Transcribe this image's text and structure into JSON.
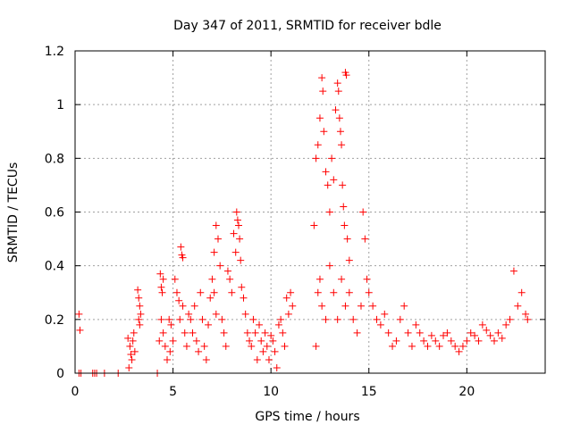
{
  "chart_data": {
    "type": "scatter",
    "title": "Day 347 of 2011, SRMTID for receiver bdle",
    "xlabel": "GPS time / hours",
    "ylabel": "SRMTID / TECUs",
    "xlim": [
      0,
      24
    ],
    "ylim": [
      0,
      1.2
    ],
    "xticks": [
      "0",
      "5",
      "10",
      "15",
      "20"
    ],
    "xtick_values": [
      0,
      5,
      10,
      15,
      20
    ],
    "yticks": [
      "0",
      "0.2",
      "0.4",
      "0.6",
      "0.8",
      "1",
      "1.2"
    ],
    "ytick_values": [
      0,
      0.2,
      0.4,
      0.6,
      0.8,
      1.0,
      1.2
    ],
    "grid": true,
    "marker": "plus",
    "color": "#ff0000",
    "series": [
      {
        "values": [
          [
            0.2,
            0.22
          ],
          [
            0.25,
            0.16
          ],
          [
            0.2,
            0
          ],
          [
            0.3,
            0
          ],
          [
            0.9,
            0
          ],
          [
            1.0,
            0
          ],
          [
            1.1,
            0
          ],
          [
            1.5,
            0
          ],
          [
            2.2,
            0
          ],
          [
            2.7,
            0.13
          ],
          [
            2.8,
            0.1
          ],
          [
            2.85,
            0.07
          ],
          [
            2.9,
            0.05
          ],
          [
            2.95,
            0.12
          ],
          [
            3.0,
            0.15
          ],
          [
            2.75,
            0.02
          ],
          [
            3.05,
            0.08
          ],
          [
            3.2,
            0.31
          ],
          [
            3.25,
            0.28
          ],
          [
            3.3,
            0.25
          ],
          [
            3.25,
            0.2
          ],
          [
            3.35,
            0.22
          ],
          [
            3.3,
            0.18
          ],
          [
            4.2,
            0
          ],
          [
            4.35,
            0.37
          ],
          [
            4.4,
            0.32
          ],
          [
            4.45,
            0.3
          ],
          [
            4.5,
            0.35
          ],
          [
            4.4,
            0.2
          ],
          [
            4.5,
            0.15
          ],
          [
            4.6,
            0.1
          ],
          [
            4.3,
            0.12
          ],
          [
            4.7,
            0.05
          ],
          [
            4.8,
            0.2
          ],
          [
            4.9,
            0.18
          ],
          [
            5.0,
            0.12
          ],
          [
            4.85,
            0.08
          ],
          [
            5.1,
            0.35
          ],
          [
            5.2,
            0.3
          ],
          [
            5.3,
            0.27
          ],
          [
            5.4,
            0.47
          ],
          [
            5.45,
            0.44
          ],
          [
            5.5,
            0.43
          ],
          [
            5.35,
            0.2
          ],
          [
            5.5,
            0.25
          ],
          [
            5.6,
            0.15
          ],
          [
            5.7,
            0.1
          ],
          [
            5.8,
            0.22
          ],
          [
            5.9,
            0.2
          ],
          [
            6.0,
            0.15
          ],
          [
            6.1,
            0.25
          ],
          [
            6.2,
            0.12
          ],
          [
            6.3,
            0.08
          ],
          [
            6.4,
            0.3
          ],
          [
            6.5,
            0.2
          ],
          [
            6.6,
            0.1
          ],
          [
            6.7,
            0.05
          ],
          [
            6.8,
            0.18
          ],
          [
            6.9,
            0.28
          ],
          [
            7.0,
            0.35
          ],
          [
            7.1,
            0.3
          ],
          [
            7.2,
            0.22
          ],
          [
            7.1,
            0.45
          ],
          [
            7.2,
            0.55
          ],
          [
            7.3,
            0.5
          ],
          [
            7.4,
            0.4
          ],
          [
            7.5,
            0.2
          ],
          [
            7.6,
            0.15
          ],
          [
            7.7,
            0.1
          ],
          [
            7.8,
            0.38
          ],
          [
            7.9,
            0.35
          ],
          [
            8.0,
            0.3
          ],
          [
            8.1,
            0.52
          ],
          [
            8.2,
            0.45
          ],
          [
            8.25,
            0.6
          ],
          [
            8.3,
            0.57
          ],
          [
            8.35,
            0.55
          ],
          [
            8.4,
            0.5
          ],
          [
            8.45,
            0.42
          ],
          [
            8.5,
            0.32
          ],
          [
            8.6,
            0.28
          ],
          [
            8.7,
            0.22
          ],
          [
            8.8,
            0.15
          ],
          [
            8.9,
            0.12
          ],
          [
            9.0,
            0.1
          ],
          [
            9.1,
            0.2
          ],
          [
            9.2,
            0.15
          ],
          [
            9.3,
            0.05
          ],
          [
            9.4,
            0.18
          ],
          [
            9.5,
            0.12
          ],
          [
            9.6,
            0.08
          ],
          [
            9.7,
            0.15
          ],
          [
            9.8,
            0.1
          ],
          [
            9.9,
            0.05
          ],
          [
            10.0,
            0.14
          ],
          [
            10.1,
            0.12
          ],
          [
            10.2,
            0.08
          ],
          [
            10.3,
            0.02
          ],
          [
            10.4,
            0.18
          ],
          [
            10.5,
            0.2
          ],
          [
            10.6,
            0.15
          ],
          [
            10.7,
            0.1
          ],
          [
            10.8,
            0.28
          ],
          [
            10.9,
            0.22
          ],
          [
            11.0,
            0.3
          ],
          [
            11.1,
            0.25
          ],
          [
            12.2,
            0.55
          ],
          [
            12.3,
            0.8
          ],
          [
            12.4,
            0.85
          ],
          [
            12.5,
            0.95
          ],
          [
            12.6,
            1.1
          ],
          [
            12.65,
            1.05
          ],
          [
            12.7,
            0.9
          ],
          [
            12.8,
            0.75
          ],
          [
            12.9,
            0.7
          ],
          [
            13.0,
            0.6
          ],
          [
            13.1,
            0.8
          ],
          [
            13.2,
            0.72
          ],
          [
            13.3,
            0.98
          ],
          [
            13.4,
            1.08
          ],
          [
            13.45,
            1.05
          ],
          [
            13.5,
            0.95
          ],
          [
            13.55,
            0.9
          ],
          [
            13.6,
            0.85
          ],
          [
            13.65,
            0.7
          ],
          [
            13.7,
            0.62
          ],
          [
            13.75,
            0.55
          ],
          [
            13.8,
            1.12
          ],
          [
            13.85,
            1.11
          ],
          [
            13.9,
            0.5
          ],
          [
            14.0,
            0.42
          ],
          [
            12.3,
            0.1
          ],
          [
            12.4,
            0.3
          ],
          [
            12.5,
            0.35
          ],
          [
            12.6,
            0.25
          ],
          [
            12.8,
            0.2
          ],
          [
            13.0,
            0.4
          ],
          [
            13.2,
            0.3
          ],
          [
            13.4,
            0.2
          ],
          [
            13.6,
            0.35
          ],
          [
            13.8,
            0.25
          ],
          [
            14.0,
            0.3
          ],
          [
            14.2,
            0.2
          ],
          [
            14.4,
            0.15
          ],
          [
            14.6,
            0.25
          ],
          [
            14.7,
            0.6
          ],
          [
            14.8,
            0.5
          ],
          [
            14.9,
            0.35
          ],
          [
            15.0,
            0.3
          ],
          [
            15.2,
            0.25
          ],
          [
            15.4,
            0.2
          ],
          [
            15.6,
            0.18
          ],
          [
            15.8,
            0.22
          ],
          [
            16.0,
            0.15
          ],
          [
            16.2,
            0.1
          ],
          [
            16.4,
            0.12
          ],
          [
            16.6,
            0.2
          ],
          [
            16.8,
            0.25
          ],
          [
            17.0,
            0.15
          ],
          [
            17.2,
            0.1
          ],
          [
            17.4,
            0.18
          ],
          [
            17.6,
            0.15
          ],
          [
            17.8,
            0.12
          ],
          [
            18.0,
            0.1
          ],
          [
            18.2,
            0.14
          ],
          [
            18.4,
            0.12
          ],
          [
            18.6,
            0.1
          ],
          [
            18.8,
            0.14
          ],
          [
            19.0,
            0.15
          ],
          [
            19.2,
            0.12
          ],
          [
            19.4,
            0.1
          ],
          [
            19.6,
            0.08
          ],
          [
            19.8,
            0.1
          ],
          [
            20.0,
            0.12
          ],
          [
            20.2,
            0.15
          ],
          [
            20.4,
            0.14
          ],
          [
            20.6,
            0.12
          ],
          [
            20.8,
            0.18
          ],
          [
            21.0,
            0.16
          ],
          [
            21.2,
            0.14
          ],
          [
            21.4,
            0.12
          ],
          [
            21.6,
            0.15
          ],
          [
            21.8,
            0.13
          ],
          [
            22.0,
            0.18
          ],
          [
            22.2,
            0.2
          ],
          [
            22.4,
            0.38
          ],
          [
            22.6,
            0.25
          ],
          [
            22.8,
            0.3
          ],
          [
            23.0,
            0.22
          ],
          [
            23.1,
            0.2
          ]
        ]
      }
    ]
  }
}
